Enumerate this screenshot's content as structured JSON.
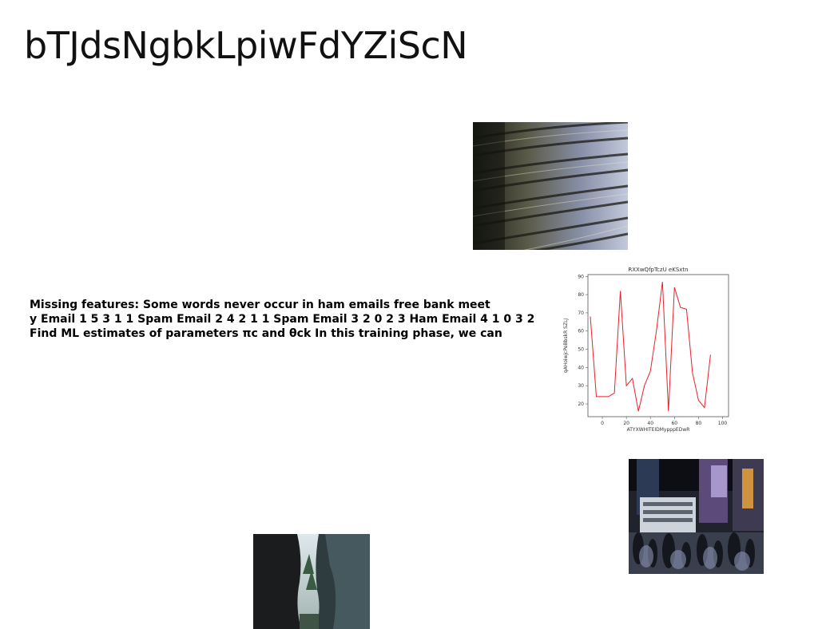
{
  "page": {
    "title": "bTJdsNgbkLpiwFdYZiScN"
  },
  "paragraph": {
    "lines": [
      "Missing features: Some words never occur in ham emails free bank meet",
      "y Email 1 5 3 1 1 Spam Email 2 4 2 1 1 Spam Email 3 2 0 2 3 Ham Email 4 1 0 3 2",
      "Find ML estimates of parameters πc and θck In this training phase, we can"
    ]
  },
  "images": {
    "building": "high-rise apartment facade photo",
    "street": "crowded city street at night photo",
    "canyon": "rocky canyon with trees photo"
  },
  "chart_data": {
    "type": "line",
    "title": "RXXwQfpTczU eKSxtn",
    "xlabel": "ATYXWHITEIDMypppEDwR",
    "ylabel": "qAHoiwjcPeBbskR SZLJ",
    "x": [
      -10,
      -5,
      0,
      5,
      10,
      15,
      20,
      25,
      30,
      35,
      40,
      45,
      50,
      55,
      60,
      65,
      70,
      75,
      80,
      85,
      90,
      95,
      100
    ],
    "y": [
      68,
      24,
      24,
      24,
      26,
      82,
      30,
      34,
      16,
      30,
      38,
      60,
      87,
      16,
      84,
      73,
      72,
      37,
      22,
      18,
      47,
      null,
      null
    ],
    "xticks": [
      0,
      20,
      40,
      60,
      80,
      100
    ],
    "yticks": [
      20,
      30,
      40,
      50,
      60,
      70,
      80,
      90
    ],
    "xlim": [
      -12,
      105
    ],
    "ylim": [
      13,
      91
    ],
    "line_color": "#e8202a",
    "grid": false
  }
}
